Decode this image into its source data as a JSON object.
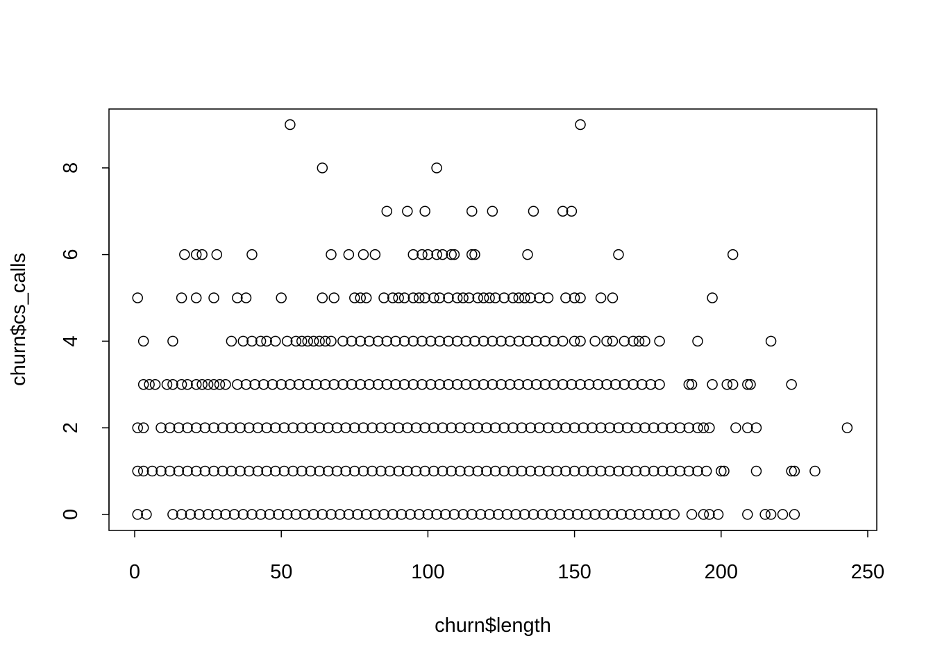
{
  "chart_data": {
    "type": "scatter",
    "x_label": "churn$length",
    "y_label": "churn$cs_calls",
    "xlim": [
      -8.76,
      253.08
    ],
    "ylim": [
      -0.37,
      9.36
    ],
    "xticks": [
      0,
      50,
      100,
      150,
      200,
      250
    ],
    "yticks": [
      0,
      2,
      4,
      6,
      8
    ],
    "color": "#000000",
    "x": [
      53,
      152,
      64,
      103,
      86,
      93,
      99,
      115,
      122,
      136,
      146,
      149,
      17,
      21,
      23,
      28,
      40,
      67,
      73,
      78,
      82,
      95,
      98,
      100,
      103,
      105,
      108,
      109,
      115,
      116,
      134,
      165,
      204,
      1,
      16,
      21,
      27,
      35,
      38,
      50,
      64,
      68,
      75,
      77,
      79,
      85,
      88,
      90,
      92,
      95,
      97,
      99,
      102,
      104,
      107,
      110,
      112,
      114,
      117,
      119,
      121,
      123,
      126,
      129,
      131,
      133,
      135,
      138,
      141,
      147,
      150,
      152,
      159,
      163,
      197,
      3,
      13,
      33,
      37,
      40,
      43,
      45,
      48,
      52,
      55,
      57,
      59,
      61,
      63,
      65,
      67,
      71,
      74,
      77,
      80,
      83,
      86,
      89,
      92,
      95,
      98,
      101,
      104,
      107,
      110,
      113,
      116,
      119,
      122,
      125,
      128,
      131,
      134,
      137,
      140,
      143,
      146,
      150,
      152,
      157,
      161,
      163,
      167,
      170,
      172,
      174,
      179,
      192,
      217,
      3,
      5,
      7,
      11,
      13,
      16,
      18,
      21,
      23,
      25,
      27,
      29,
      31,
      35,
      38,
      41,
      44,
      47,
      50,
      53,
      56,
      59,
      62,
      65,
      68,
      71,
      74,
      77,
      80,
      83,
      86,
      89,
      92,
      95,
      98,
      101,
      104,
      107,
      110,
      113,
      116,
      119,
      122,
      125,
      128,
      131,
      134,
      137,
      140,
      143,
      146,
      149,
      152,
      155,
      158,
      161,
      164,
      167,
      170,
      173,
      176,
      179,
      189,
      190,
      197,
      202,
      204,
      209,
      210,
      224,
      1,
      3,
      9,
      12,
      15,
      18,
      21,
      24,
      27,
      30,
      33,
      36,
      39,
      42,
      45,
      48,
      51,
      54,
      57,
      60,
      63,
      66,
      69,
      72,
      75,
      78,
      81,
      84,
      87,
      90,
      93,
      96,
      99,
      102,
      105,
      108,
      111,
      114,
      117,
      120,
      123,
      126,
      129,
      132,
      135,
      138,
      141,
      144,
      147,
      150,
      153,
      156,
      159,
      162,
      165,
      168,
      171,
      174,
      177,
      180,
      183,
      186,
      189,
      192,
      194,
      196,
      205,
      209,
      212,
      243,
      1,
      3,
      6,
      9,
      12,
      15,
      18,
      21,
      24,
      27,
      30,
      33,
      36,
      39,
      42,
      45,
      48,
      51,
      54,
      57,
      60,
      63,
      66,
      69,
      72,
      75,
      78,
      81,
      84,
      87,
      90,
      93,
      96,
      99,
      102,
      105,
      108,
      111,
      114,
      117,
      120,
      123,
      126,
      129,
      132,
      135,
      138,
      141,
      144,
      147,
      150,
      153,
      156,
      159,
      162,
      165,
      168,
      171,
      174,
      177,
      180,
      183,
      186,
      189,
      192,
      195,
      200,
      201,
      212,
      224,
      225,
      232,
      1,
      4,
      13,
      16,
      19,
      22,
      25,
      28,
      31,
      34,
      37,
      40,
      43,
      46,
      49,
      52,
      55,
      58,
      61,
      64,
      67,
      70,
      73,
      76,
      79,
      82,
      85,
      88,
      91,
      94,
      97,
      100,
      103,
      106,
      109,
      112,
      115,
      118,
      121,
      124,
      127,
      130,
      133,
      136,
      139,
      142,
      145,
      148,
      151,
      154,
      157,
      160,
      163,
      166,
      169,
      172,
      175,
      178,
      181,
      184,
      190,
      194,
      196,
      199,
      209,
      215,
      217,
      221,
      225
    ],
    "values": [
      9,
      9,
      8,
      8,
      7,
      7,
      7,
      7,
      7,
      7,
      7,
      7,
      6,
      6,
      6,
      6,
      6,
      6,
      6,
      6,
      6,
      6,
      6,
      6,
      6,
      6,
      6,
      6,
      6,
      6,
      6,
      6,
      6,
      5,
      5,
      5,
      5,
      5,
      5,
      5,
      5,
      5,
      5,
      5,
      5,
      5,
      5,
      5,
      5,
      5,
      5,
      5,
      5,
      5,
      5,
      5,
      5,
      5,
      5,
      5,
      5,
      5,
      5,
      5,
      5,
      5,
      5,
      5,
      5,
      5,
      5,
      5,
      5,
      5,
      5,
      4,
      4,
      4,
      4,
      4,
      4,
      4,
      4,
      4,
      4,
      4,
      4,
      4,
      4,
      4,
      4,
      4,
      4,
      4,
      4,
      4,
      4,
      4,
      4,
      4,
      4,
      4,
      4,
      4,
      4,
      4,
      4,
      4,
      4,
      4,
      4,
      4,
      4,
      4,
      4,
      4,
      4,
      4,
      4,
      4,
      4,
      4,
      4,
      4,
      4,
      4,
      4,
      4,
      4,
      3,
      3,
      3,
      3,
      3,
      3,
      3,
      3,
      3,
      3,
      3,
      3,
      3,
      3,
      3,
      3,
      3,
      3,
      3,
      3,
      3,
      3,
      3,
      3,
      3,
      3,
      3,
      3,
      3,
      3,
      3,
      3,
      3,
      3,
      3,
      3,
      3,
      3,
      3,
      3,
      3,
      3,
      3,
      3,
      3,
      3,
      3,
      3,
      3,
      3,
      3,
      3,
      3,
      3,
      3,
      3,
      3,
      3,
      3,
      3,
      3,
      3,
      3,
      3,
      3,
      3,
      3,
      3,
      3,
      3,
      2,
      2,
      2,
      2,
      2,
      2,
      2,
      2,
      2,
      2,
      2,
      2,
      2,
      2,
      2,
      2,
      2,
      2,
      2,
      2,
      2,
      2,
      2,
      2,
      2,
      2,
      2,
      2,
      2,
      2,
      2,
      2,
      2,
      2,
      2,
      2,
      2,
      2,
      2,
      2,
      2,
      2,
      2,
      2,
      2,
      2,
      2,
      2,
      2,
      2,
      2,
      2,
      2,
      2,
      2,
      2,
      2,
      2,
      2,
      2,
      2,
      2,
      2,
      2,
      2,
      2,
      2,
      2,
      2,
      2,
      1,
      1,
      1,
      1,
      1,
      1,
      1,
      1,
      1,
      1,
      1,
      1,
      1,
      1,
      1,
      1,
      1,
      1,
      1,
      1,
      1,
      1,
      1,
      1,
      1,
      1,
      1,
      1,
      1,
      1,
      1,
      1,
      1,
      1,
      1,
      1,
      1,
      1,
      1,
      1,
      1,
      1,
      1,
      1,
      1,
      1,
      1,
      1,
      1,
      1,
      1,
      1,
      1,
      1,
      1,
      1,
      1,
      1,
      1,
      1,
      1,
      1,
      1,
      1,
      1,
      1,
      1,
      1,
      1,
      1,
      1,
      1,
      0,
      0,
      0,
      0,
      0,
      0,
      0,
      0,
      0,
      0,
      0,
      0,
      0,
      0,
      0,
      0,
      0,
      0,
      0,
      0,
      0,
      0,
      0,
      0,
      0,
      0,
      0,
      0,
      0,
      0,
      0,
      0,
      0,
      0,
      0,
      0,
      0,
      0,
      0,
      0,
      0,
      0,
      0,
      0,
      0,
      0,
      0,
      0,
      0,
      0,
      0,
      0,
      0,
      0,
      0,
      0,
      0,
      0,
      0,
      0,
      0,
      0,
      0,
      0,
      0,
      0,
      0,
      0,
      0
    ]
  }
}
